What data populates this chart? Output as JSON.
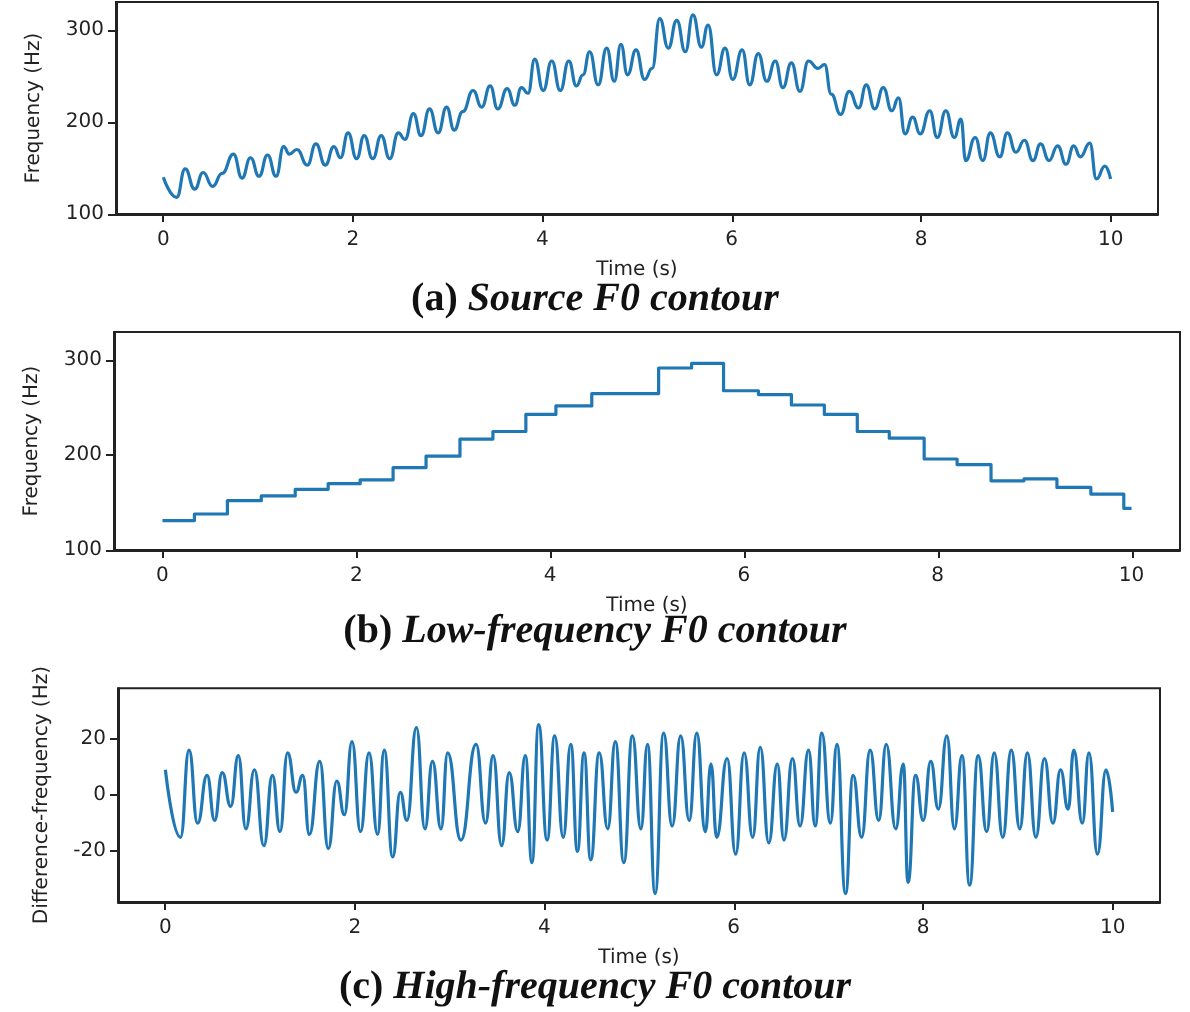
{
  "chart_data": [
    {
      "type": "line",
      "title": "(a) Source F0 contour",
      "xlabel": "Time (s)",
      "ylabel": "Frequency (Hz)",
      "xlim": [
        -0.5,
        10.5
      ],
      "ylim": [
        100,
        330
      ],
      "xticks": [
        0,
        2,
        4,
        6,
        8,
        10
      ],
      "yticks": [
        100,
        200,
        300
      ],
      "x": [
        0,
        0.14,
        0.23,
        0.33,
        0.42,
        0.52,
        0.62,
        0.74,
        0.83,
        0.92,
        1.01,
        1.1,
        1.19,
        1.27,
        1.33,
        1.41,
        1.52,
        1.61,
        1.71,
        1.8,
        1.87,
        1.95,
        2.04,
        2.12,
        2.21,
        2.3,
        2.39,
        2.48,
        2.55,
        2.64,
        2.72,
        2.81,
        2.9,
        2.99,
        3.07,
        3.16,
        3.27,
        3.36,
        3.45,
        3.53,
        3.63,
        3.71,
        3.78,
        3.85,
        3.92,
        4.01,
        4.1,
        4.19,
        4.28,
        4.36,
        4.43,
        4.5,
        4.59,
        4.68,
        4.76,
        4.83,
        4.9,
        4.99,
        5.08,
        5.16,
        5.24,
        5.33,
        5.42,
        5.51,
        5.59,
        5.68,
        5.75,
        5.84,
        5.93,
        6.01,
        6.11,
        6.19,
        6.28,
        6.37,
        6.46,
        6.54,
        6.63,
        6.72,
        6.81,
        6.91,
        6.98,
        7.05,
        7.15,
        7.24,
        7.34,
        7.42,
        7.51,
        7.6,
        7.69,
        7.76,
        7.83,
        7.91,
        7.99,
        8.09,
        8.17,
        8.26,
        8.35,
        8.42,
        8.47,
        8.57,
        8.65,
        8.73,
        8.83,
        8.91,
        9,
        9.09,
        9.18,
        9.26,
        9.35,
        9.44,
        9.53,
        9.61,
        9.68,
        9.78,
        9.85,
        9.94,
        10
      ],
      "series": [
        {
          "color": "#1f77b4",
          "values": [
            140,
            118,
            149,
            127,
            145,
            130,
            144,
            165,
            139,
            161,
            141,
            164,
            141,
            173,
            165,
            170,
            153,
            176,
            153,
            173,
            161,
            188,
            160,
            185,
            160,
            185,
            160,
            188,
            181,
            209,
            185,
            214,
            188,
            216,
            191,
            211,
            234,
            216,
            239,
            214,
            236,
            218,
            237,
            231,
            268,
            234,
            266,
            234,
            266,
            239,
            251,
            276,
            240,
            280,
            244,
            284,
            251,
            278,
            246,
            258,
            312,
            280,
            310,
            276,
            316,
            281,
            305,
            251,
            280,
            246,
            278,
            240,
            274,
            244,
            266,
            237,
            264,
            233,
            266,
            258,
            262,
            230,
            208,
            233,
            215,
            240,
            214,
            237,
            212,
            226,
            187,
            205,
            187,
            212,
            183,
            212,
            183,
            203,
            158,
            183,
            158,
            188,
            162,
            188,
            167,
            180,
            158,
            176,
            158,
            174,
            154,
            174,
            162,
            177,
            138,
            152,
            138
          ]
        }
      ]
    },
    {
      "type": "step",
      "title": "(b) Low-frequency F0 contour",
      "xlabel": "Time (s)",
      "ylabel": "Frequency (Hz)",
      "xlim": [
        -0.5,
        10.5
      ],
      "ylim": [
        100,
        330
      ],
      "xticks": [
        0,
        2,
        4,
        6,
        8,
        10
      ],
      "yticks": [
        100,
        200,
        300
      ],
      "x": [
        0,
        0.33,
        0.67,
        1.02,
        1.37,
        1.71,
        2.04,
        2.38,
        2.72,
        3.07,
        3.41,
        3.75,
        4.06,
        4.43,
        5.12,
        5.46,
        5.79,
        6.15,
        6.49,
        6.83,
        7.17,
        7.5,
        7.86,
        8.2,
        8.55,
        8.89,
        9.23,
        9.58,
        9.92,
        10
      ],
      "series": [
        {
          "color": "#1f77b4",
          "values": [
            131,
            138,
            152,
            157,
            164,
            170,
            174,
            187,
            199,
            217,
            225,
            243,
            252,
            265,
            292,
            297,
            268,
            264,
            253,
            243,
            225,
            218,
            196,
            190,
            173,
            175,
            166,
            159,
            144,
            144
          ]
        }
      ]
    },
    {
      "type": "line",
      "title": "(c) High-frequency F0 contour",
      "xlabel": "Time (s)",
      "ylabel": "Difference-frequency (Hz)",
      "xlim": [
        -0.5,
        10.5
      ],
      "ylim": [
        -38,
        38
      ],
      "xticks": [
        0,
        2,
        4,
        6,
        8,
        10
      ],
      "yticks": [
        -20,
        0,
        20
      ],
      "x": [
        0,
        0.16,
        0.25,
        0.34,
        0.44,
        0.52,
        0.6,
        0.69,
        0.77,
        0.85,
        0.94,
        1.04,
        1.13,
        1.21,
        1.29,
        1.38,
        1.45,
        1.52,
        1.63,
        1.72,
        1.81,
        1.89,
        1.97,
        2.06,
        2.15,
        2.24,
        2.31,
        2.4,
        2.48,
        2.55,
        2.65,
        2.74,
        2.82,
        2.91,
        2.98,
        3.12,
        3.28,
        3.38,
        3.46,
        3.55,
        3.63,
        3.72,
        3.8,
        3.87,
        3.94,
        4.03,
        4.11,
        4.2,
        4.28,
        4.35,
        4.42,
        4.49,
        4.58,
        4.67,
        4.75,
        4.84,
        4.93,
        5.02,
        5.09,
        5.17,
        5.26,
        5.35,
        5.44,
        5.53,
        5.61,
        5.7,
        5.76,
        5.82,
        5.93,
        6.02,
        6.11,
        6.2,
        6.28,
        6.37,
        6.46,
        6.53,
        6.62,
        6.7,
        6.79,
        6.86,
        6.93,
        7.02,
        7.09,
        7.18,
        7.26,
        7.35,
        7.44,
        7.53,
        7.61,
        7.71,
        7.79,
        7.84,
        7.92,
        8,
        8.08,
        8.16,
        8.25,
        8.33,
        8.41,
        8.49,
        8.58,
        8.67,
        8.75,
        8.84,
        8.93,
        9.02,
        9.1,
        9.19,
        9.28,
        9.37,
        9.45,
        9.53,
        9.59,
        9.68,
        9.75,
        9.84,
        9.93,
        10
      ],
      "series": [
        {
          "color": "#1f77b4",
          "values": [
            9,
            -15,
            16,
            -10,
            7,
            -9,
            8,
            -4,
            14,
            -12,
            9,
            -18,
            7,
            -13,
            15,
            1,
            7,
            -14,
            12,
            -19,
            5,
            -7,
            19,
            -13,
            15,
            -14,
            16,
            -22,
            1,
            -9,
            24,
            -12,
            12,
            -12,
            15,
            -16,
            18,
            -10,
            14,
            -18,
            8,
            -13,
            14,
            -24,
            25,
            -16,
            21,
            -15,
            18,
            -20,
            15,
            -23,
            15,
            -12,
            19,
            -24,
            21,
            -12,
            18,
            -35,
            22,
            -11,
            21,
            -9,
            22,
            -13,
            11,
            -15,
            13,
            -21,
            15,
            -15,
            17,
            -17,
            11,
            -16,
            13,
            -11,
            16,
            -11,
            22,
            -10,
            18,
            -35,
            7,
            -15,
            16,
            -9,
            18,
            -12,
            11,
            -31,
            7,
            -9,
            12,
            -5,
            21,
            -12,
            14,
            -32,
            14,
            -13,
            15,
            -15,
            16,
            -12,
            15,
            -15,
            13,
            -10,
            9,
            -5,
            16,
            -10,
            15,
            -21,
            9,
            -6
          ]
        }
      ]
    }
  ]
}
